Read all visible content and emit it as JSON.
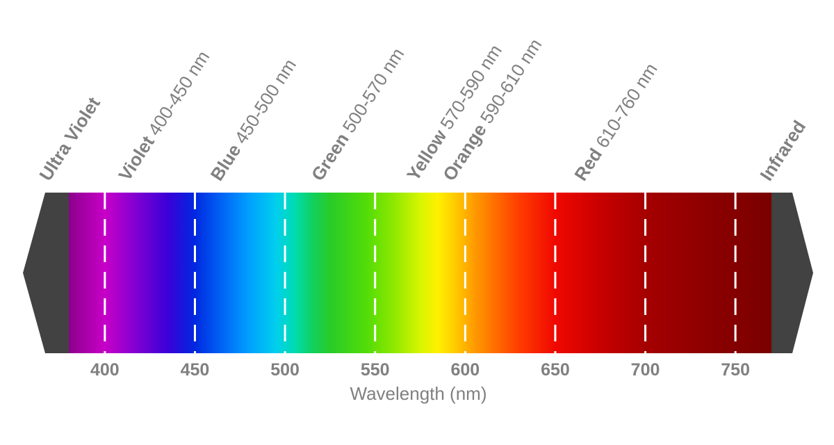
{
  "chart_data": {
    "type": "heatmap",
    "subtype": "visible-light-spectrum-bar",
    "title": "",
    "axis": {
      "label": "Wavelength (nm)",
      "min_nm": 380,
      "max_nm": 770,
      "ticks": [
        400,
        450,
        500,
        550,
        600,
        650,
        700,
        750
      ]
    },
    "bands": [
      {
        "name": "Ultra Violet",
        "range": "",
        "label_nm": 369
      },
      {
        "name": "Violet",
        "range": "400-450 nm",
        "label_nm": 413
      },
      {
        "name": "Blue",
        "range": "450-500 nm",
        "label_nm": 464
      },
      {
        "name": "Green",
        "range": "500-570 nm",
        "label_nm": 520
      },
      {
        "name": "Yellow",
        "range": "570-590 nm",
        "label_nm": 573
      },
      {
        "name": "Orange",
        "range": "590-610 nm",
        "label_nm": 593
      },
      {
        "name": "Red",
        "range": "610-760 nm",
        "label_nm": 666
      },
      {
        "name": "Infrared",
        "range": "",
        "label_nm": 769
      }
    ],
    "gradient_stops": [
      {
        "nm": 380,
        "color": "#8B008B"
      },
      {
        "nm": 400,
        "color": "#C800C8"
      },
      {
        "nm": 415,
        "color": "#8A00D0"
      },
      {
        "nm": 435,
        "color": "#3A00D8"
      },
      {
        "nm": 450,
        "color": "#0028E0"
      },
      {
        "nm": 465,
        "color": "#0064F5"
      },
      {
        "nm": 480,
        "color": "#00A0FF"
      },
      {
        "nm": 495,
        "color": "#00CFEE"
      },
      {
        "nm": 505,
        "color": "#00DCB4"
      },
      {
        "nm": 515,
        "color": "#10D060"
      },
      {
        "nm": 525,
        "color": "#28CC28"
      },
      {
        "nm": 545,
        "color": "#52DC08"
      },
      {
        "nm": 560,
        "color": "#8CE800"
      },
      {
        "nm": 575,
        "color": "#D8F500"
      },
      {
        "nm": 585,
        "color": "#FFF000"
      },
      {
        "nm": 595,
        "color": "#FFC800"
      },
      {
        "nm": 605,
        "color": "#FF9B00"
      },
      {
        "nm": 615,
        "color": "#FF7400"
      },
      {
        "nm": 630,
        "color": "#FF3C00"
      },
      {
        "nm": 650,
        "color": "#F00800"
      },
      {
        "nm": 675,
        "color": "#C80000"
      },
      {
        "nm": 700,
        "color": "#A50000"
      },
      {
        "nm": 735,
        "color": "#8C0000"
      },
      {
        "nm": 770,
        "color": "#7A0000"
      }
    ],
    "styles": {
      "text_color": "#808080",
      "cap_color": "#424242",
      "gridline_color": "#ffffff",
      "background": "#ffffff"
    }
  }
}
